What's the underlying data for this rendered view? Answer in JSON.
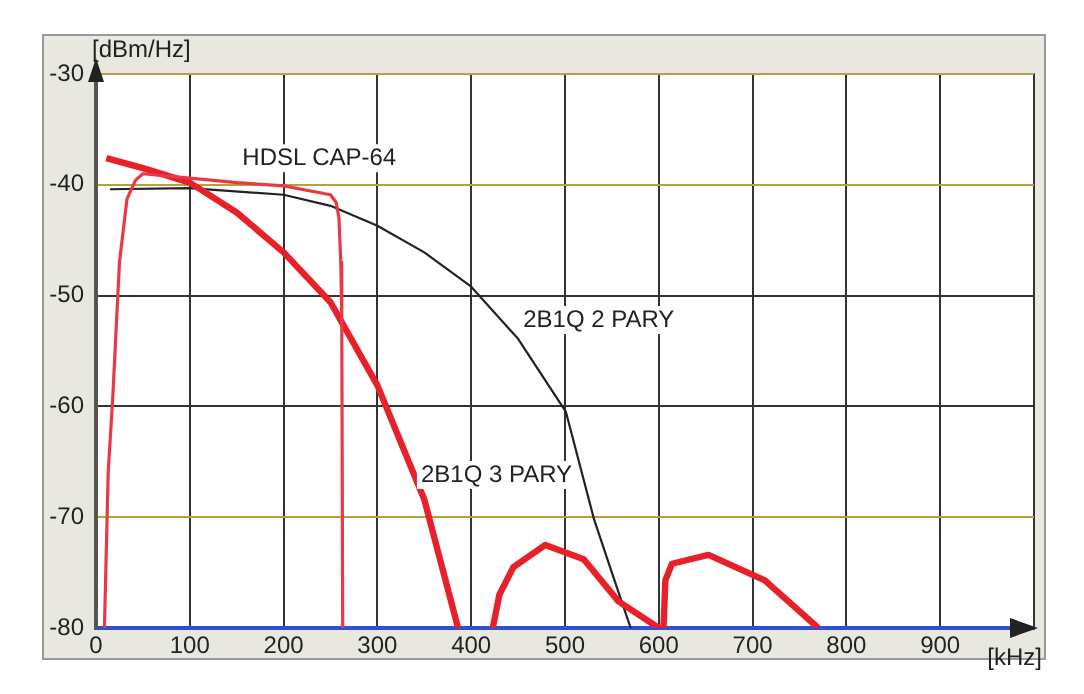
{
  "chart_data": {
    "type": "line",
    "xlabel": "[kHz]",
    "ylabel": "[dBm/Hz]",
    "xlim": [
      0,
      1000
    ],
    "xticks": [
      0,
      100,
      200,
      300,
      400,
      500,
      600,
      700,
      800,
      900,
      {
        "value": 1000,
        "label": null
      }
    ],
    "ylim": [
      -80,
      -30
    ],
    "yticks": [
      -80,
      -70,
      -60,
      -50,
      -40,
      -30
    ],
    "grid": true,
    "legend": false,
    "marker": "none",
    "series": [
      {
        "name": "HDSL CAP-64",
        "color": "#e83a44",
        "x": [
          9,
          13,
          18,
          25,
          33,
          42,
          50,
          100,
          150,
          200,
          250,
          256,
          259,
          261,
          262,
          263
        ],
        "values": [
          -80,
          -66,
          -59,
          -47,
          -41.3,
          -39.6,
          -39,
          -39.4,
          -39.8,
          -40.1,
          -40.9,
          -41.6,
          -43,
          -47,
          -52,
          -80
        ]
      },
      {
        "name": "2B1Q 3 PARY",
        "color": "#e8202a",
        "x": [
          11,
          50,
          100,
          150,
          200,
          250,
          300,
          350,
          386,
          null,
          423,
          430,
          445,
          479,
          520,
          557,
          600,
          null,
          605,
          607,
          614,
          653,
          713,
          770
        ],
        "values": [
          -37.6,
          -38.5,
          -39.8,
          -42.5,
          -46.1,
          -50.6,
          -58.1,
          -68.4,
          -80,
          null,
          -80,
          -77,
          -74.5,
          -72.5,
          -73.8,
          -77.6,
          -80,
          null,
          -80,
          -75.7,
          -74.2,
          -73.4,
          -75.7,
          -80
        ]
      },
      {
        "name": "2B1Q 2 PARY",
        "color": "#222222",
        "x": [
          15,
          100,
          200,
          250,
          300,
          350,
          400,
          450,
          501,
          531,
          550,
          570
        ],
        "values": [
          -40.4,
          -40.3,
          -40.9,
          -41.9,
          -43.7,
          -46.1,
          -49.2,
          -53.9,
          -60.5,
          -70.2,
          -75,
          -80
        ]
      }
    ]
  }
}
